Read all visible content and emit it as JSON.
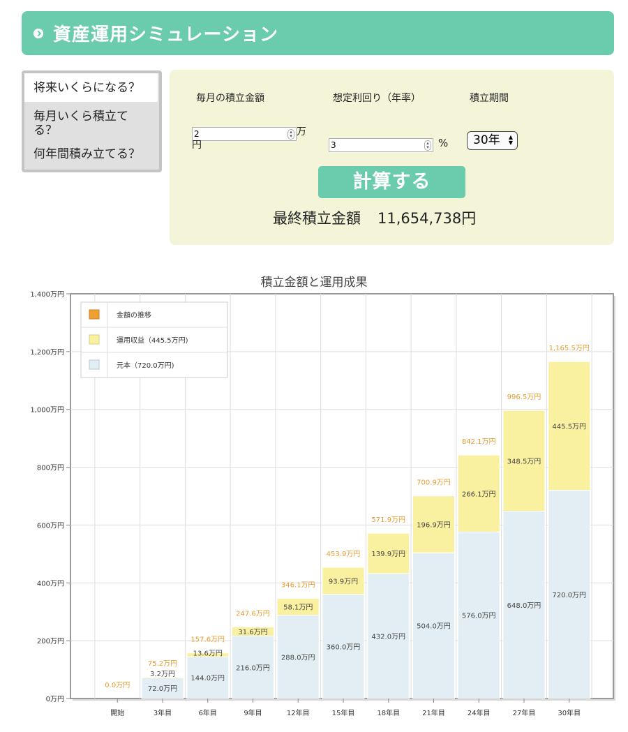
{
  "header": {
    "title": "資産運用シミュレーション"
  },
  "tabs": [
    {
      "label": "将来いくらになる？"
    },
    {
      "label": "毎月いくら積立てる？"
    },
    {
      "label": "何年間積み立てる？"
    }
  ],
  "form": {
    "monthly_label": "毎月の積立金額",
    "monthly_value": "2",
    "monthly_unit": "万円",
    "rate_label": "想定利回り（年率）",
    "rate_value": "3",
    "rate_unit": "%",
    "period_label": "積立期間",
    "period_value": "30年",
    "calc_button": "計算する",
    "result_label": "最終積立金額",
    "result_value": "11,654,738円"
  },
  "chart_data": {
    "type": "bar",
    "stacked": true,
    "title": "積立金額と運用成果",
    "categories": [
      "開始",
      "3年目",
      "6年目",
      "9年目",
      "12年目",
      "15年目",
      "18年目",
      "21年目",
      "24年目",
      "27年目",
      "30年目"
    ],
    "yticks": [
      "0万円",
      "200万円",
      "400万円",
      "600万円",
      "800万円",
      "1,000万円",
      "1,200万円",
      "1,400万円"
    ],
    "ylim": [
      0,
      1400
    ],
    "grid": true,
    "legend_position": "top-left",
    "series": [
      {
        "name": "元本（720.0万円)",
        "color": "#e2eef3",
        "values": [
          0,
          72.0,
          144.0,
          216.0,
          288.0,
          360.0,
          432.0,
          504.0,
          576.0,
          648.0,
          720.0
        ],
        "labels": [
          "",
          "72.0万円",
          "144.0万円",
          "216.0万円",
          "288.0万円",
          "360.0万円",
          "432.0万円",
          "504.0万円",
          "576.0万円",
          "648.0万円",
          "720.0万円"
        ]
      },
      {
        "name": "運用収益（445.5万円)",
        "color": "#faf1a0",
        "values": [
          0,
          3.2,
          13.6,
          31.6,
          58.1,
          93.9,
          139.9,
          196.9,
          266.1,
          348.5,
          445.5
        ],
        "labels": [
          "",
          "3.2万円",
          "13.6万円",
          "31.6万円",
          "58.1万円",
          "93.9万円",
          "139.9万円",
          "196.9万円",
          "266.1万円",
          "348.5万円",
          "445.5万円"
        ]
      }
    ],
    "totals": {
      "name": "金額の推移",
      "color": "#f0a030",
      "values": [
        0.0,
        75.2,
        157.6,
        247.6,
        346.1,
        453.9,
        571.9,
        700.9,
        842.1,
        996.5,
        1165.5
      ],
      "labels": [
        "0.0万円",
        "75.2万円",
        "157.6万円",
        "247.6万円",
        "346.1万円",
        "453.9万円",
        "571.9万円",
        "700.9万円",
        "842.1万円",
        "996.5万円",
        "1,165.5万円"
      ]
    }
  }
}
